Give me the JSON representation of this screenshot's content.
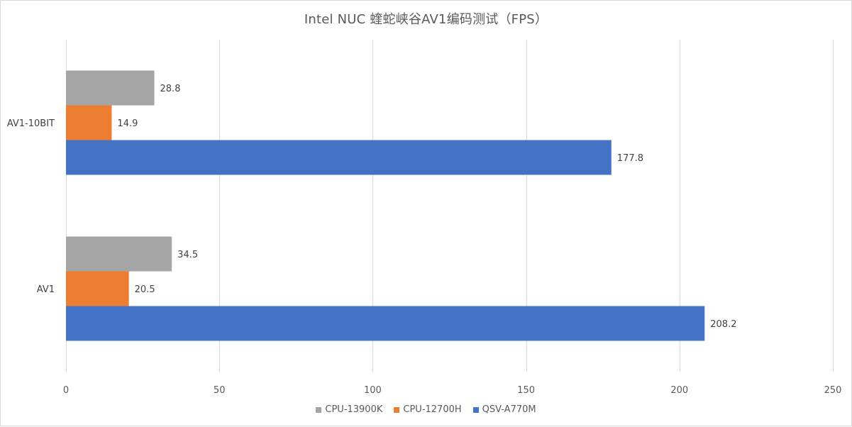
{
  "chart_data": {
    "type": "bar",
    "orientation": "horizontal",
    "title": "Intel NUC 蝰蛇峡谷AV1编码测试（FPS）",
    "categories": [
      "AV1-10BIT",
      "AV1"
    ],
    "series": [
      {
        "name": "CPU-13900K",
        "color": "#a5a5a5",
        "values": [
          28.8,
          34.5
        ]
      },
      {
        "name": "CPU-12700H",
        "color": "#ed7d31",
        "values": [
          14.9,
          20.5
        ]
      },
      {
        "name": "QSV-A770M",
        "color": "#4472c4",
        "values": [
          177.8,
          208.2
        ]
      }
    ],
    "xlim": [
      0,
      250
    ],
    "xticks": [
      0,
      50,
      100,
      150,
      200,
      250
    ],
    "grid": true,
    "legend_position": "bottom"
  }
}
